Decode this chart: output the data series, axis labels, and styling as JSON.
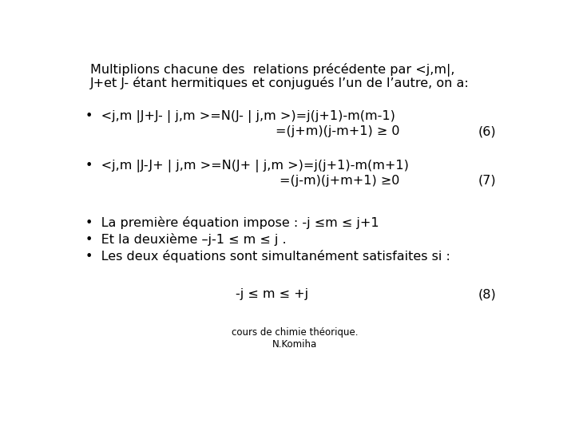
{
  "background_color": "#ffffff",
  "title_line1": "Multiplions chacune des  relations précédente par <j,m|,",
  "title_line2": "J+et J- étant hermitiques et conjugués l’un de l’autre, on a:",
  "title_line2_sub1": "+",
  "title_line2_sub2": "-",
  "bullet1_line1": "•  <j,m |J+J- | j,m >=N(J- | j,m >)=j(j+1)-m(m-1)",
  "bullet1_line2": "=(j+m)(j-m+1) ≥ 0",
  "bullet1_eq": "(6)",
  "bullet2_line1": "•  <j,m |J-J+ | j,m >=N(J+ | j,m >)=j(j+1)-m(m+1)",
  "bullet2_line2": "=(j-m)(j+m+1) ≥0",
  "bullet2_eq": "(7)",
  "bullet3": "•  La première équation impose : -j ≤m ≤ j+1",
  "bullet4": "•  Et la deuxième –j-1 ≤ m ≤ j .",
  "bullet5": "•  Les deux équations sont simultanément satisfaites si :",
  "center_eq": "-j ≤ m ≤ +j",
  "center_eq_num": "(8)",
  "footer1": "cours de chimie théorique.",
  "footer2": "N.Komiha",
  "text_color": "#000000",
  "font_size_title": 11.5,
  "font_size_body": 11.5,
  "font_size_footer": 8.5
}
